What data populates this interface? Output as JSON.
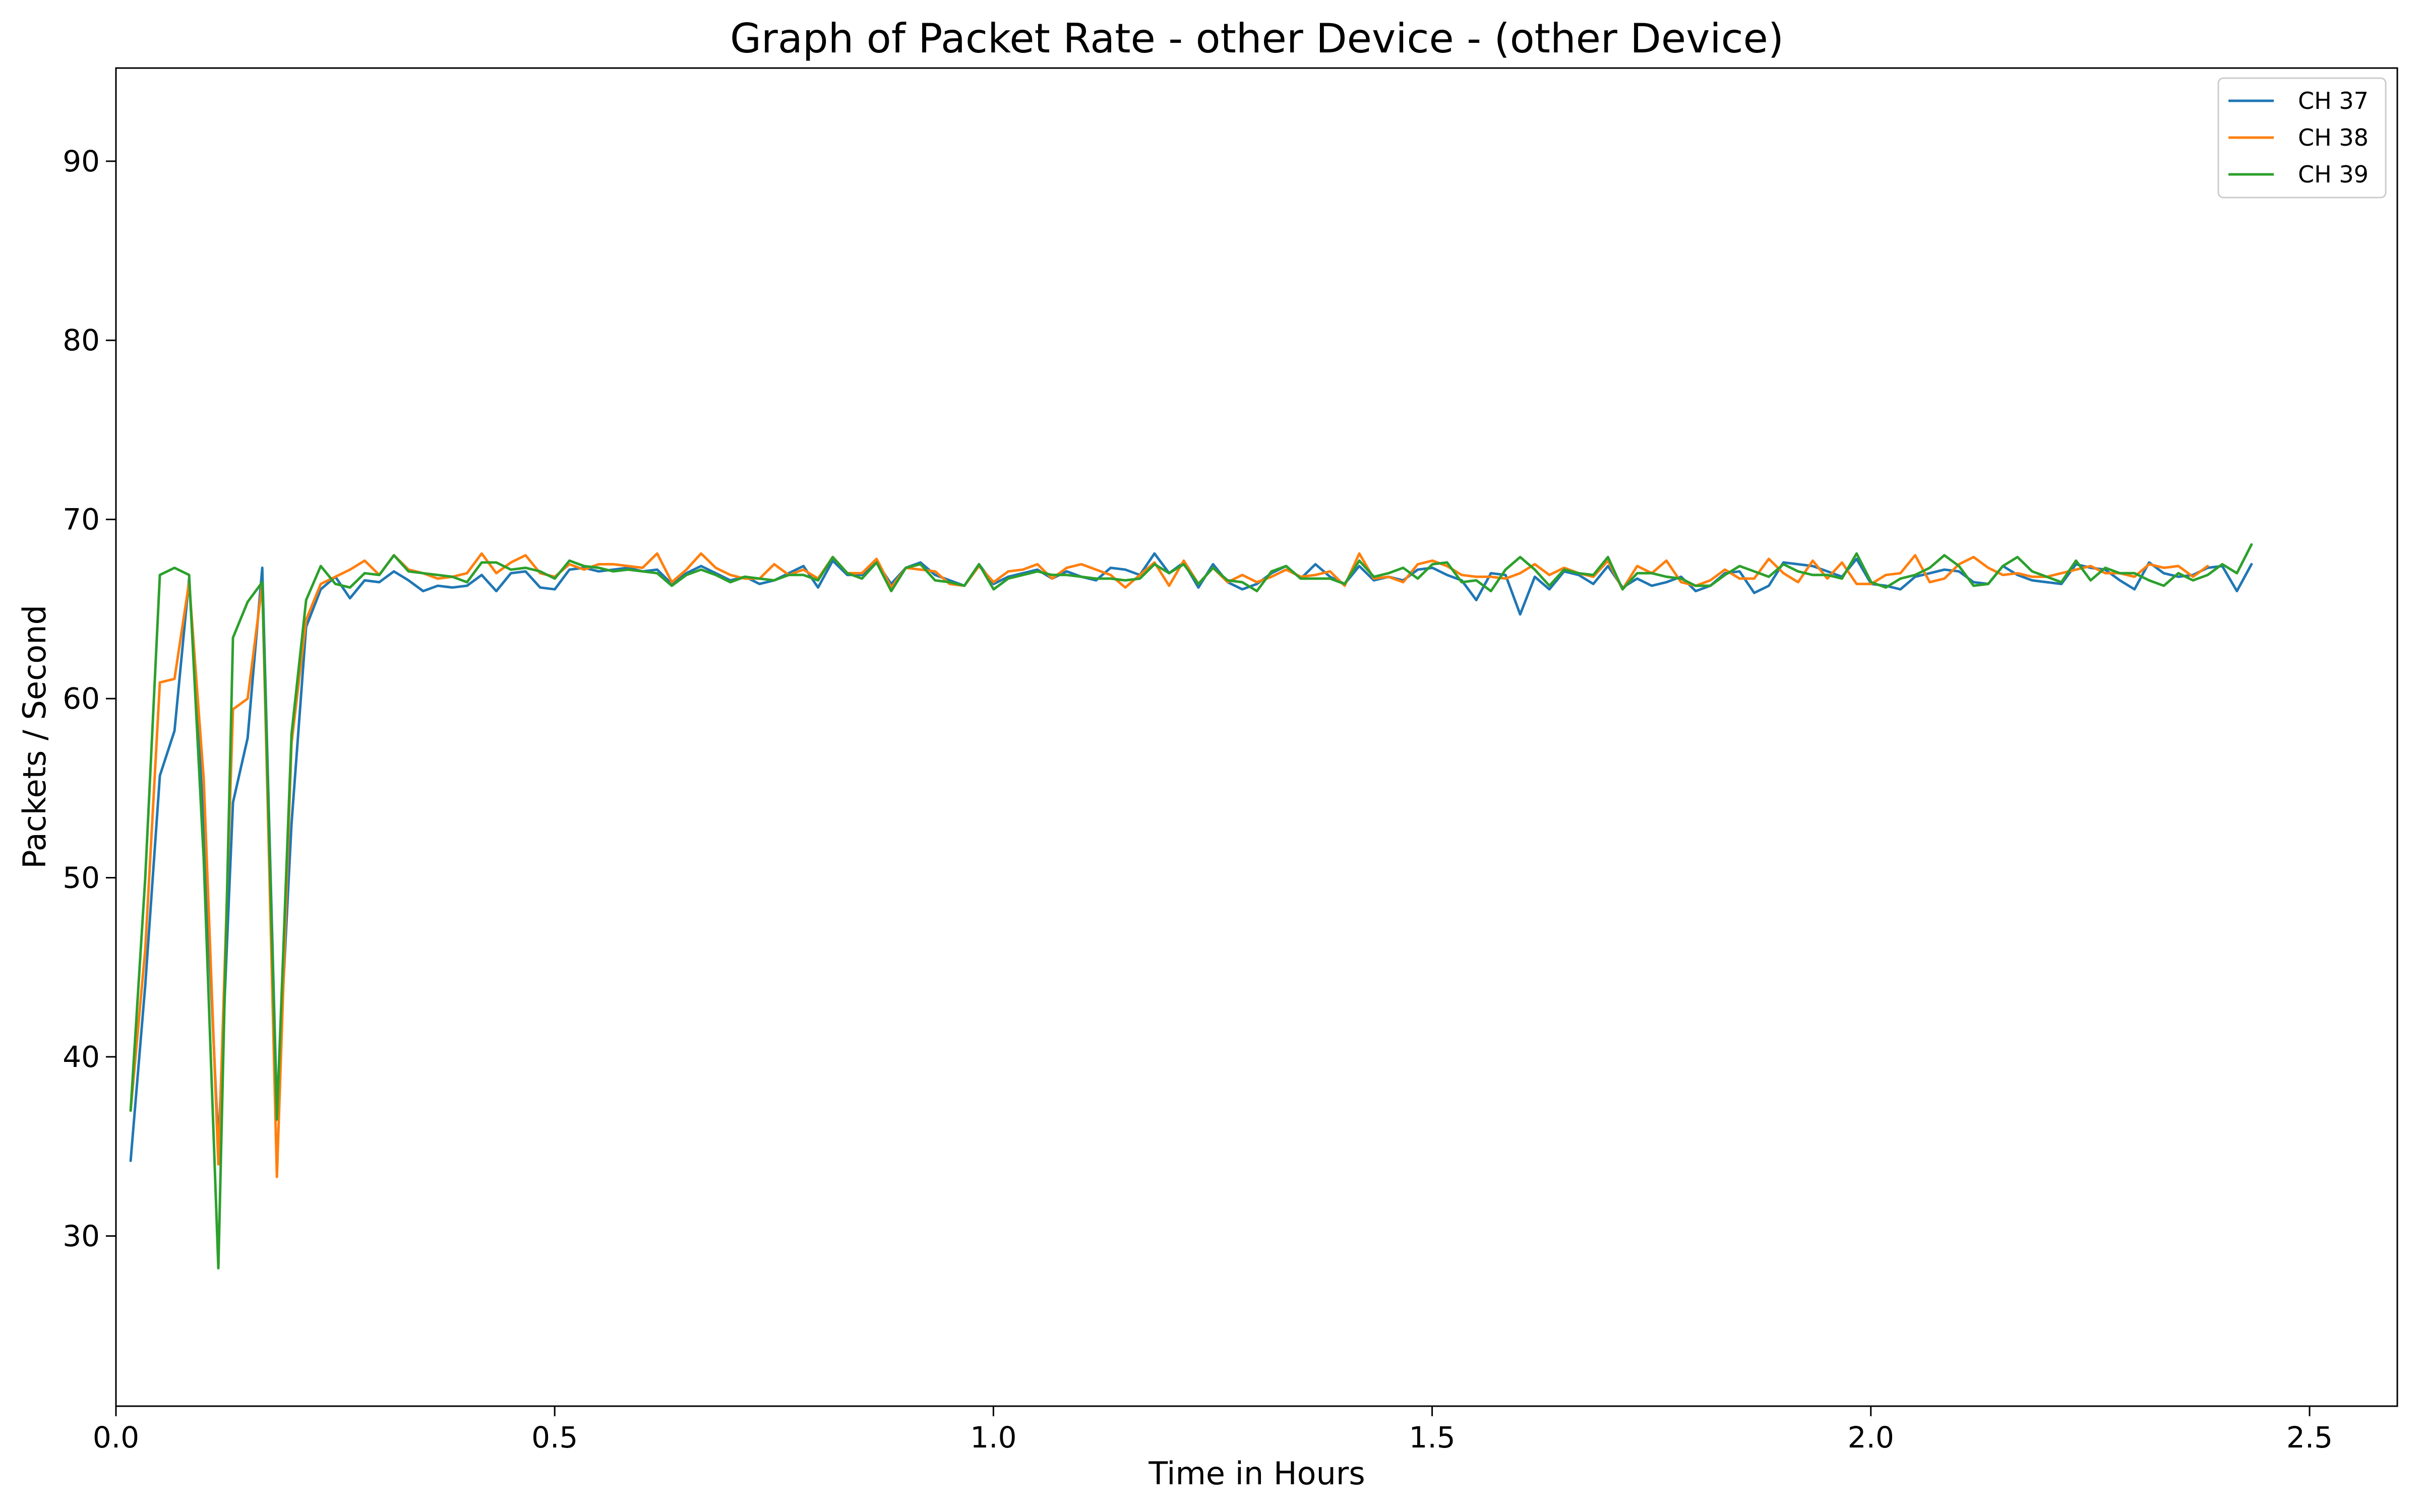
{
  "chart_data": {
    "type": "line",
    "title": "Graph of Packet Rate - other Device - (other Device)",
    "xlabel": "Time in Hours",
    "ylabel": "Packets / Second",
    "xlim": [
      0.0,
      2.6
    ],
    "ylim": [
      20.5,
      95.2
    ],
    "xticks": [
      0.0,
      0.5,
      1.0,
      1.5,
      2.0,
      2.5
    ],
    "xtick_labels": [
      "0.0",
      "0.5",
      "1.0",
      "1.5",
      "2.0",
      "2.5"
    ],
    "yticks": [
      30,
      40,
      50,
      60,
      70,
      80,
      90
    ],
    "ytick_labels": [
      "30",
      "40",
      "50",
      "60",
      "70",
      "80",
      "90"
    ],
    "grid": false,
    "legend_position": "top-right",
    "x_start": 0.0167,
    "x_step": 0.01667,
    "series": [
      {
        "name": "CH 37",
        "color": "#1f77b4",
        "values": [
          34.2,
          44.0,
          55.7,
          58.2,
          66.7,
          53.0,
          35.0,
          54.2,
          57.8,
          67.3,
          37.0,
          53.0,
          64.0,
          66.1,
          66.8,
          65.6,
          66.6,
          66.5,
          67.1,
          66.6,
          66.0,
          66.3,
          66.2,
          66.3,
          66.9,
          66.0,
          67.0,
          67.1,
          66.2,
          66.1,
          67.2,
          67.3,
          67.1,
          67.2,
          67.3,
          67.1,
          67.2,
          66.4,
          67.0,
          67.4,
          67.0,
          66.6,
          66.8,
          66.4,
          66.6,
          67.0,
          67.4,
          66.2,
          67.7,
          66.9,
          66.9,
          67.6,
          66.4,
          67.3,
          67.6,
          66.9,
          66.6,
          66.3,
          67.5,
          66.4,
          66.8,
          67.0,
          67.2,
          66.7,
          67.1,
          66.8,
          66.6,
          67.3,
          67.2,
          66.9,
          68.1,
          67.0,
          67.6,
          66.2,
          67.5,
          66.5,
          66.1,
          66.4,
          67.0,
          67.4,
          66.7,
          67.5,
          66.8,
          66.4,
          67.4,
          66.6,
          66.8,
          66.6,
          67.2,
          67.3,
          66.9,
          66.6,
          65.5,
          67.0,
          66.9,
          64.7,
          66.8,
          66.1,
          67.1,
          66.9,
          66.4,
          67.4,
          66.2,
          66.7,
          66.3,
          66.5,
          66.8,
          66.0,
          66.3,
          67.0,
          67.1,
          65.9,
          66.3,
          67.6,
          67.5,
          67.4,
          67.1,
          66.8,
          67.8,
          66.4,
          66.3,
          66.1,
          66.8,
          67.0,
          67.2,
          67.1,
          66.5,
          66.4,
          67.4,
          66.9,
          66.6,
          66.5,
          66.4,
          67.5,
          67.3,
          67.2,
          66.6,
          66.1,
          67.6,
          67.0,
          66.8,
          66.9,
          67.3,
          67.4,
          66.0,
          67.5
        ]
      },
      {
        "name": "CH 38",
        "color": "#ff7f0e",
        "values": [
          37.0,
          46.0,
          60.9,
          61.1,
          66.5,
          55.5,
          34.0,
          59.4,
          60.0,
          66.4,
          33.3,
          57.5,
          64.4,
          66.4,
          66.8,
          67.2,
          67.7,
          66.9,
          68.0,
          67.2,
          67.0,
          66.7,
          66.8,
          67.0,
          68.1,
          67.0,
          67.6,
          68.0,
          67.0,
          66.8,
          67.5,
          67.2,
          67.5,
          67.5,
          67.4,
          67.3,
          68.1,
          66.5,
          67.2,
          68.1,
          67.3,
          66.9,
          66.7,
          66.7,
          67.5,
          66.9,
          67.2,
          66.7,
          67.9,
          67.0,
          67.0,
          67.8,
          66.2,
          67.3,
          67.2,
          67.1,
          66.4,
          66.3,
          67.4,
          66.5,
          67.1,
          67.2,
          67.5,
          66.7,
          67.3,
          67.5,
          67.2,
          66.9,
          66.2,
          66.9,
          67.6,
          66.3,
          67.7,
          66.4,
          67.3,
          66.5,
          66.9,
          66.5,
          66.8,
          67.2,
          66.8,
          66.9,
          67.1,
          66.3,
          68.1,
          66.7,
          66.8,
          66.5,
          67.5,
          67.7,
          67.4,
          66.9,
          66.8,
          66.8,
          66.7,
          67.0,
          67.5,
          66.9,
          67.3,
          67.0,
          66.8,
          67.7,
          66.1,
          67.4,
          67.0,
          67.7,
          66.5,
          66.3,
          66.6,
          67.2,
          66.7,
          66.7,
          67.8,
          67.0,
          66.5,
          67.7,
          66.7,
          67.6,
          66.4,
          66.4,
          66.9,
          67.0,
          68.0,
          66.5,
          66.7,
          67.5,
          67.9,
          67.3,
          66.9,
          67.0,
          66.8,
          66.8,
          67.0,
          67.2,
          67.4,
          67.0,
          67.0,
          66.8,
          67.5,
          67.3,
          67.4,
          66.8,
          67.4
        ]
      },
      {
        "name": "CH 39",
        "color": "#2ca02c",
        "values": [
          37.0,
          50.0,
          66.9,
          67.3,
          66.9,
          51.0,
          28.2,
          63.4,
          65.4,
          66.5,
          36.5,
          58.0,
          65.5,
          67.4,
          66.4,
          66.2,
          67.0,
          66.9,
          68.0,
          67.1,
          67.0,
          66.9,
          66.8,
          66.5,
          67.6,
          67.6,
          67.2,
          67.3,
          67.1,
          66.7,
          67.7,
          67.4,
          67.3,
          67.1,
          67.2,
          67.1,
          67.0,
          66.3,
          66.9,
          67.2,
          66.9,
          66.5,
          66.8,
          66.7,
          66.6,
          66.9,
          66.9,
          66.6,
          67.9,
          67.0,
          66.7,
          67.6,
          66.0,
          67.3,
          67.5,
          66.6,
          66.5,
          66.3,
          67.5,
          66.1,
          66.7,
          66.9,
          67.1,
          66.9,
          66.9,
          66.8,
          66.7,
          66.7,
          66.6,
          66.7,
          67.5,
          67.0,
          67.5,
          66.4,
          67.3,
          66.6,
          66.5,
          66.0,
          67.1,
          67.4,
          66.7,
          66.7,
          66.7,
          66.4,
          67.7,
          66.8,
          67.0,
          67.3,
          66.7,
          67.5,
          67.6,
          66.5,
          66.6,
          66.0,
          67.2,
          67.9,
          67.2,
          66.3,
          67.2,
          67.0,
          66.9,
          67.9,
          66.1,
          67.0,
          67.0,
          66.8,
          66.7,
          66.3,
          66.3,
          66.9,
          67.4,
          67.1,
          66.8,
          67.5,
          67.1,
          66.9,
          66.9,
          66.7,
          68.1,
          66.5,
          66.2,
          66.7,
          66.9,
          67.3,
          68.0,
          67.4,
          66.3,
          66.4,
          67.4,
          67.9,
          67.1,
          66.8,
          66.5,
          67.7,
          66.6,
          67.3,
          67.0,
          67.0,
          66.6,
          66.3,
          67.0,
          66.6,
          66.9,
          67.5,
          67.0,
          68.6
        ]
      }
    ]
  }
}
